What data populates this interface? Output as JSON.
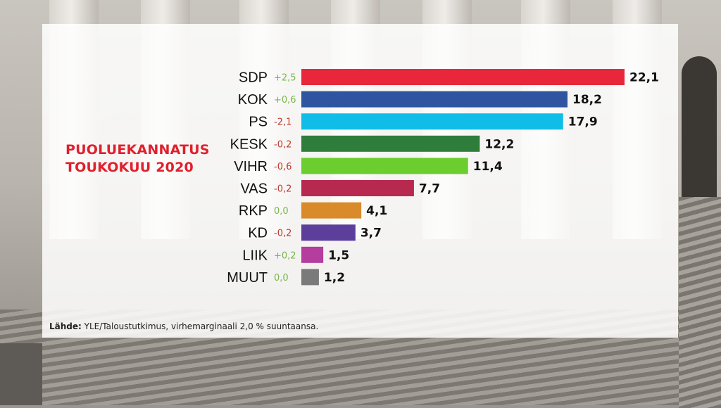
{
  "title_line1": "PUOLUEKANNATUS",
  "title_line2": "TOUKOKUU 2020",
  "source_label": "Lähde:",
  "source_text": "YLE/Taloustutkimus, virhemarginaali 2,0 % suuntaansa.",
  "colors": {
    "title": "#e0202c",
    "positive_change": "#7ab648",
    "negative_change": "#c0392b",
    "neutral_change": "#7ab648"
  },
  "chart_data": {
    "type": "bar",
    "orientation": "horizontal",
    "categories": [
      "SDP",
      "KOK",
      "PS",
      "KESK",
      "VIHR",
      "VAS",
      "RKP",
      "KD",
      "LIIK",
      "MUUT"
    ],
    "values": [
      22.1,
      18.2,
      17.9,
      12.2,
      11.4,
      7.7,
      4.1,
      3.7,
      1.5,
      1.2
    ],
    "value_labels": [
      "22,1",
      "18,2",
      "17,9",
      "12,2",
      "11,4",
      "7,7",
      "4,1",
      "3,7",
      "1,5",
      "1,2"
    ],
    "changes": [
      "+2,5",
      "+0,6",
      "-2,1",
      "-0,2",
      "-0,6",
      "-0,2",
      "0,0",
      "-0,2",
      "+0,2",
      "0,0"
    ],
    "bar_colors": [
      "#e8283a",
      "#2f54a0",
      "#10bde8",
      "#2f7d3a",
      "#6cce2e",
      "#b8294f",
      "#d98a2b",
      "#5b3f9a",
      "#b43d9e",
      "#7a7a7a"
    ],
    "title": "PUOLUEKANNATUS TOUKOKUU 2020",
    "xlim": [
      0,
      22.1
    ],
    "grid": false,
    "legend": "none"
  }
}
